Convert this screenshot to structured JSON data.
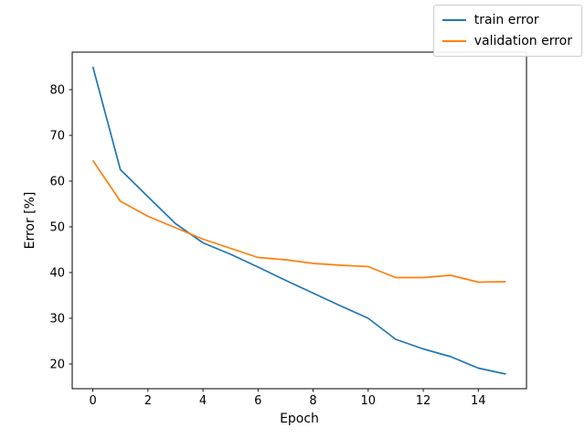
{
  "figure": {
    "background": "#ffffff"
  },
  "chart_data": {
    "type": "line",
    "title": "",
    "xlabel": "Epoch",
    "ylabel": "Error [%]",
    "x": [
      0,
      1,
      2,
      3,
      4,
      5,
      6,
      7,
      8,
      9,
      10,
      11,
      12,
      13,
      14,
      15
    ],
    "series": [
      {
        "name": "train error",
        "color": "#1f77b4",
        "values": [
          85.0,
          62.5,
          56.6,
          50.7,
          46.5,
          44.0,
          41.2,
          38.3,
          35.5,
          32.7,
          30.0,
          25.4,
          23.3,
          21.6,
          19.1,
          17.8
        ]
      },
      {
        "name": "validation error",
        "color": "#ff7f0e",
        "values": [
          64.5,
          55.6,
          52.3,
          49.8,
          47.3,
          45.3,
          43.3,
          42.8,
          42.0,
          41.6,
          41.3,
          38.9,
          38.9,
          39.4,
          37.9,
          38.0
        ]
      }
    ],
    "xlim": [
      -0.75,
      15.75
    ],
    "ylim": [
      14.6,
      88.2
    ],
    "xticks": [
      0,
      2,
      4,
      6,
      8,
      10,
      12,
      14
    ],
    "yticks": [
      20,
      30,
      40,
      50,
      60,
      70,
      80
    ],
    "grid": false,
    "axis_color": "#000000",
    "legend": {
      "position": "upper-right",
      "border_color": "#cccccc",
      "entries": [
        "train error",
        "validation error"
      ]
    }
  }
}
